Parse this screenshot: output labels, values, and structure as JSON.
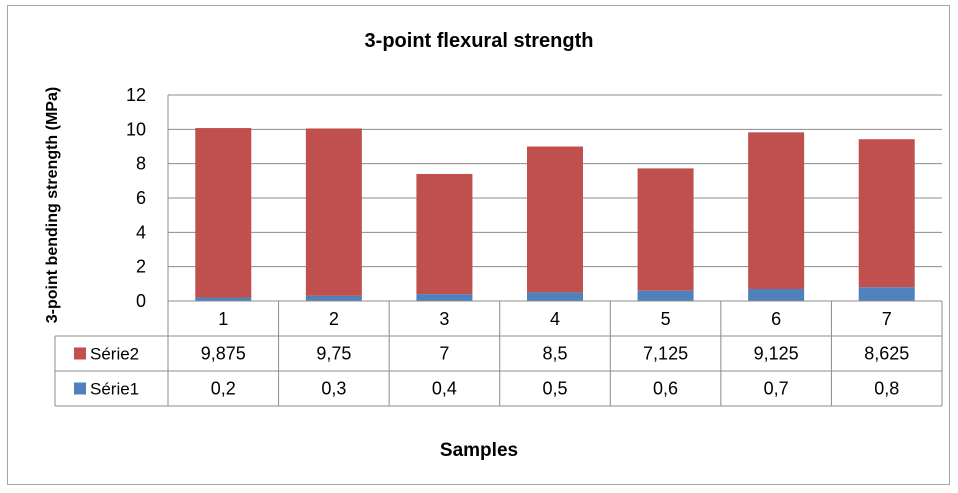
{
  "chart_data": {
    "type": "bar",
    "stacked": true,
    "title": "3-point flexural strength",
    "xlabel": "Samples",
    "ylabel": "3-point bending strength (MPa)",
    "categories": [
      "1",
      "2",
      "3",
      "4",
      "5",
      "6",
      "7"
    ],
    "ylim": [
      0,
      12
    ],
    "yticks": [
      0,
      2,
      4,
      6,
      8,
      10,
      12
    ],
    "grid": true,
    "legend_placement": "data-table",
    "series": [
      {
        "name": "Série1",
        "color": "#4f81bd",
        "values": [
          0.2,
          0.3,
          0.4,
          0.5,
          0.6,
          0.7,
          0.8
        ],
        "labels": [
          "0,2",
          "0,3",
          "0,4",
          "0,5",
          "0,6",
          "0,7",
          "0,8"
        ]
      },
      {
        "name": "Série2",
        "color": "#c0504d",
        "values": [
          9.875,
          9.75,
          7,
          8.5,
          7.125,
          9.125,
          8.625
        ],
        "labels": [
          "9,875",
          "9,75",
          "7",
          "8,5",
          "7,125",
          "9,125",
          "8,625"
        ]
      }
    ]
  }
}
